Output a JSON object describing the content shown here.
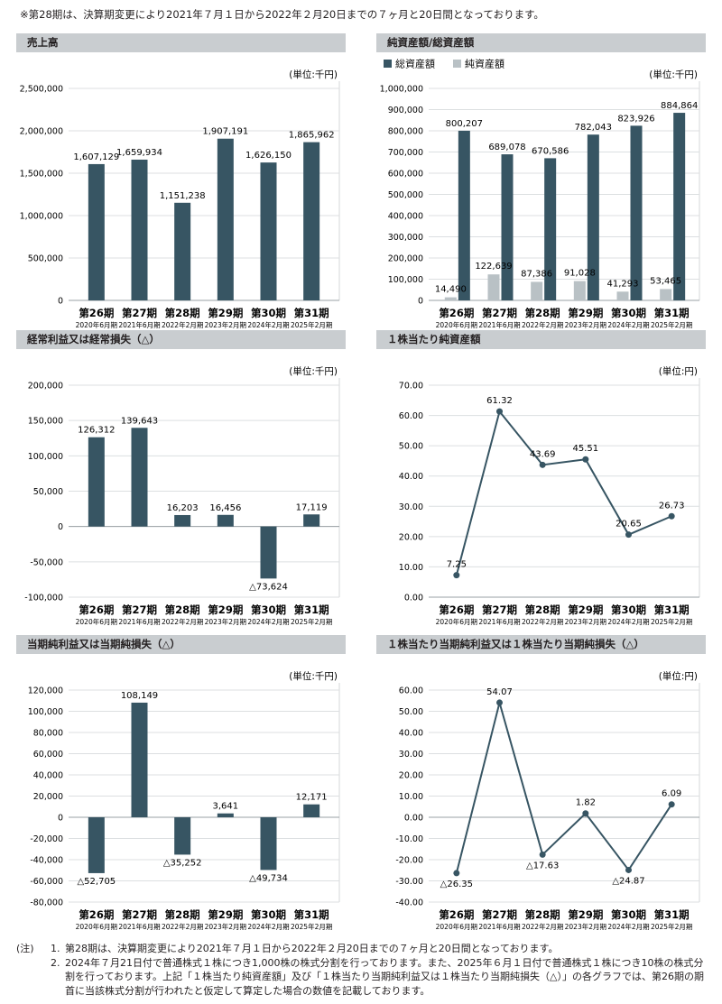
{
  "top_note": "※第28期は、決算期変更により2021年７月１日から2022年２月20日までの７ヶ月と20日間となっております。",
  "colors": {
    "dark": "#375563",
    "light": "#b9c1c5",
    "header_bg": "#c9cdd0",
    "text": "#231f20"
  },
  "periods": [
    "第26期",
    "第27期",
    "第28期",
    "第29期",
    "第30期",
    "第31期"
  ],
  "period_dates": [
    "2020年6月期",
    "2021年6月期",
    "2022年2月期",
    "2023年2月期",
    "2024年2月期",
    "2025年2月期"
  ],
  "chart_data": [
    {
      "id": "sales",
      "type": "bar",
      "title": "売上高",
      "unit": "(単位:千円)",
      "categories": [
        "第26期",
        "第27期",
        "第28期",
        "第29期",
        "第30期",
        "第31期"
      ],
      "values": [
        1607129,
        1659934,
        1151238,
        1907191,
        1626150,
        1865962
      ],
      "value_labels": [
        "1,607,129",
        "1,659,934",
        "1,151,238",
        "1,907,191",
        "1,626,150",
        "1,865,962"
      ],
      "ylim": [
        0,
        2500000
      ],
      "yticks": [
        0,
        500000,
        1000000,
        1500000,
        2000000,
        2500000
      ],
      "ytick_labels": [
        "0",
        "500,000",
        "1,000,000",
        "1,500,000",
        "2,000,000",
        "2,500,000"
      ]
    },
    {
      "id": "assets",
      "type": "bar",
      "title": "純資産額/総資産額",
      "unit": "(単位:千円)",
      "legend": [
        "総資産額",
        "純資産額"
      ],
      "categories": [
        "第26期",
        "第27期",
        "第28期",
        "第29期",
        "第30期",
        "第31期"
      ],
      "series": [
        {
          "name": "総資産額",
          "values": [
            800207,
            689078,
            670586,
            782043,
            823926,
            884864
          ],
          "value_labels": [
            "800,207",
            "689,078",
            "670,586",
            "782,043",
            "823,926",
            "884,864"
          ]
        },
        {
          "name": "純資産額",
          "values": [
            14490,
            122639,
            87386,
            91028,
            41293,
            53465
          ],
          "value_labels": [
            "14,490",
            "122,639",
            "87,386",
            "91,028",
            "41,293",
            "53,465"
          ]
        }
      ],
      "ylim": [
        0,
        1000000
      ],
      "yticks": [
        0,
        100000,
        200000,
        300000,
        400000,
        500000,
        600000,
        700000,
        800000,
        900000,
        1000000
      ],
      "ytick_labels": [
        "0",
        "100,000",
        "200,000",
        "300,000",
        "400,000",
        "500,000",
        "600,000",
        "700,000",
        "800,000",
        "900,000",
        "1,000,000"
      ]
    },
    {
      "id": "ordinary",
      "type": "bar",
      "title": "経常利益又は経常損失（△）",
      "unit": "(単位:千円)",
      "categories": [
        "第26期",
        "第27期",
        "第28期",
        "第29期",
        "第30期",
        "第31期"
      ],
      "values": [
        126312,
        139643,
        16203,
        16456,
        -73624,
        17119
      ],
      "value_labels": [
        "126,312",
        "139,643",
        "16,203",
        "16,456",
        "△73,624",
        "17,119"
      ],
      "ylim": [
        -100000,
        200000
      ],
      "yticks": [
        -100000,
        -50000,
        0,
        50000,
        100000,
        150000,
        200000
      ],
      "ytick_labels": [
        "-100,000",
        "-50,000",
        "0",
        "50,000",
        "100,000",
        "150,000",
        "200,000"
      ]
    },
    {
      "id": "nav_per_share",
      "type": "line",
      "title": "１株当たり純資産額",
      "unit": "(単位:円)",
      "categories": [
        "第26期",
        "第27期",
        "第28期",
        "第29期",
        "第30期",
        "第31期"
      ],
      "values": [
        7.25,
        61.32,
        43.69,
        45.51,
        20.65,
        26.73
      ],
      "value_labels": [
        "7.25",
        "61.32",
        "43.69",
        "45.51",
        "20.65",
        "26.73"
      ],
      "ylim": [
        0,
        70
      ],
      "yticks": [
        0,
        10,
        20,
        30,
        40,
        50,
        60,
        70
      ],
      "ytick_labels": [
        "0.00",
        "10.00",
        "20.00",
        "30.00",
        "40.00",
        "50.00",
        "60.00",
        "70.00"
      ]
    },
    {
      "id": "net_income",
      "type": "bar",
      "title": "当期純利益又は当期純損失（△）",
      "unit": "(単位:千円)",
      "categories": [
        "第26期",
        "第27期",
        "第28期",
        "第29期",
        "第30期",
        "第31期"
      ],
      "values": [
        -52705,
        108149,
        -35252,
        3641,
        -49734,
        12171
      ],
      "value_labels": [
        "△52,705",
        "108,149",
        "△35,252",
        "3,641",
        "△49,734",
        "12,171"
      ],
      "ylim": [
        -80000,
        120000
      ],
      "yticks": [
        -80000,
        -60000,
        -40000,
        -20000,
        0,
        20000,
        40000,
        60000,
        80000,
        100000,
        120000
      ],
      "ytick_labels": [
        "-80,000",
        "-60,000",
        "-40,000",
        "-20,000",
        "0",
        "20,000",
        "40,000",
        "60,000",
        "80,000",
        "100,000",
        "120,000"
      ]
    },
    {
      "id": "eps",
      "type": "line",
      "title": "１株当たり当期純利益又は１株当たり当期純損失（△）",
      "unit": "(単位:円)",
      "categories": [
        "第26期",
        "第27期",
        "第28期",
        "第29期",
        "第30期",
        "第31期"
      ],
      "values": [
        -26.35,
        54.07,
        -17.63,
        1.82,
        -24.87,
        6.09
      ],
      "value_labels": [
        "△26.35",
        "54.07",
        "△17.63",
        "1.82",
        "△24.87",
        "6.09"
      ],
      "ylim": [
        -40,
        60
      ],
      "yticks": [
        -40,
        -30,
        -20,
        -10,
        0,
        10,
        20,
        30,
        40,
        50,
        60
      ],
      "ytick_labels": [
        "-40.00",
        "-30.00",
        "-20.00",
        "-10.00",
        "0.00",
        "10.00",
        "20.00",
        "30.00",
        "40.00",
        "50.00",
        "60.00"
      ]
    }
  ],
  "footnotes": {
    "lead": "(注)",
    "items": [
      {
        "num": "1.",
        "text": "第28期は、決算期変更により2021年７月１日から2022年２月20日までの７ヶ月と20日間となっております。"
      },
      {
        "num": "2.",
        "text": "2024年７月21日付で普通株式１株につき1,000株の株式分割を行っております。また、2025年６月１日付で普通株式１株につき10株の株式分割を行っております。上記「１株当たり純資産額」及び「１株当たり当期純利益又は１株当たり当期純損失（△）」の各グラフでは、第26期の期首に当該株式分割が行われたと仮定して算定した場合の数値を記載しております。"
      }
    ]
  }
}
